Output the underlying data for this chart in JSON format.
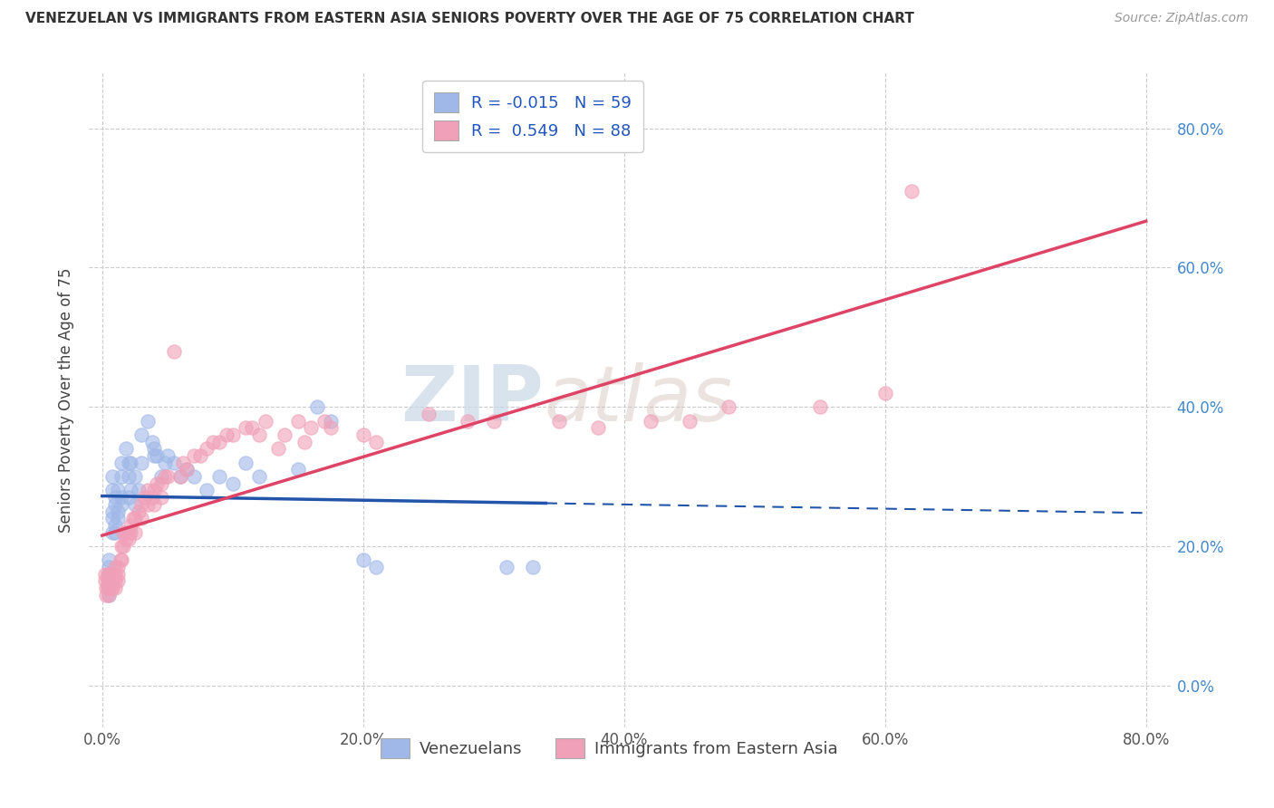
{
  "title": "VENEZUELAN VS IMMIGRANTS FROM EASTERN ASIA SENIORS POVERTY OVER THE AGE OF 75 CORRELATION CHART",
  "source": "Source: ZipAtlas.com",
  "ylabel": "Seniors Poverty Over the Age of 75",
  "xlim": [
    -0.01,
    0.82
  ],
  "ylim": [
    -0.06,
    0.88
  ],
  "ytick_labels": [
    "0.0%",
    "20.0%",
    "40.0%",
    "60.0%",
    "80.0%"
  ],
  "ytick_values": [
    0.0,
    0.2,
    0.4,
    0.6,
    0.8
  ],
  "xtick_labels": [
    "0.0%",
    "20.0%",
    "40.0%",
    "60.0%",
    "80.0%"
  ],
  "xtick_values": [
    0.0,
    0.2,
    0.4,
    0.6,
    0.8
  ],
  "venezuelan_color": "#a0b8e8",
  "eastern_asia_color": "#f0a0b8",
  "venezuelan_line_color": "#2255aa",
  "eastern_asia_line_color": "#dd4466",
  "R_venezuelan": -0.015,
  "N_venezuelan": 59,
  "R_eastern_asia": 0.549,
  "N_eastern_asia": 88,
  "watermark_zip": "ZIP",
  "watermark_atlas": "atlas",
  "venezuelan_scatter": [
    [
      0.005,
      0.16
    ],
    [
      0.005,
      0.15
    ],
    [
      0.005,
      0.14
    ],
    [
      0.005,
      0.13
    ],
    [
      0.005,
      0.17
    ],
    [
      0.005,
      0.18
    ],
    [
      0.005,
      0.16
    ],
    [
      0.005,
      0.15
    ],
    [
      0.008,
      0.25
    ],
    [
      0.008,
      0.24
    ],
    [
      0.008,
      0.22
    ],
    [
      0.008,
      0.3
    ],
    [
      0.008,
      0.28
    ],
    [
      0.01,
      0.26
    ],
    [
      0.01,
      0.27
    ],
    [
      0.01,
      0.23
    ],
    [
      0.01,
      0.22
    ],
    [
      0.012,
      0.28
    ],
    [
      0.012,
      0.25
    ],
    [
      0.012,
      0.24
    ],
    [
      0.015,
      0.27
    ],
    [
      0.015,
      0.26
    ],
    [
      0.015,
      0.32
    ],
    [
      0.015,
      0.3
    ],
    [
      0.018,
      0.34
    ],
    [
      0.02,
      0.32
    ],
    [
      0.02,
      0.3
    ],
    [
      0.02,
      0.27
    ],
    [
      0.022,
      0.32
    ],
    [
      0.022,
      0.28
    ],
    [
      0.025,
      0.3
    ],
    [
      0.025,
      0.26
    ],
    [
      0.028,
      0.28
    ],
    [
      0.03,
      0.36
    ],
    [
      0.03,
      0.32
    ],
    [
      0.035,
      0.38
    ],
    [
      0.038,
      0.35
    ],
    [
      0.04,
      0.34
    ],
    [
      0.04,
      0.33
    ],
    [
      0.042,
      0.33
    ],
    [
      0.045,
      0.3
    ],
    [
      0.048,
      0.32
    ],
    [
      0.05,
      0.33
    ],
    [
      0.055,
      0.32
    ],
    [
      0.06,
      0.3
    ],
    [
      0.065,
      0.31
    ],
    [
      0.07,
      0.3
    ],
    [
      0.08,
      0.28
    ],
    [
      0.09,
      0.3
    ],
    [
      0.1,
      0.29
    ],
    [
      0.11,
      0.32
    ],
    [
      0.12,
      0.3
    ],
    [
      0.15,
      0.31
    ],
    [
      0.165,
      0.4
    ],
    [
      0.175,
      0.38
    ],
    [
      0.2,
      0.18
    ],
    [
      0.21,
      0.17
    ],
    [
      0.31,
      0.17
    ],
    [
      0.33,
      0.17
    ]
  ],
  "eastern_asia_scatter": [
    [
      0.002,
      0.16
    ],
    [
      0.002,
      0.15
    ],
    [
      0.003,
      0.14
    ],
    [
      0.003,
      0.13
    ],
    [
      0.004,
      0.15
    ],
    [
      0.004,
      0.14
    ],
    [
      0.004,
      0.16
    ],
    [
      0.005,
      0.15
    ],
    [
      0.005,
      0.14
    ],
    [
      0.005,
      0.13
    ],
    [
      0.006,
      0.16
    ],
    [
      0.006,
      0.15
    ],
    [
      0.007,
      0.14
    ],
    [
      0.007,
      0.16
    ],
    [
      0.007,
      0.15
    ],
    [
      0.008,
      0.16
    ],
    [
      0.008,
      0.14
    ],
    [
      0.008,
      0.15
    ],
    [
      0.01,
      0.17
    ],
    [
      0.01,
      0.15
    ],
    [
      0.01,
      0.14
    ],
    [
      0.01,
      0.16
    ],
    [
      0.012,
      0.17
    ],
    [
      0.012,
      0.16
    ],
    [
      0.012,
      0.15
    ],
    [
      0.014,
      0.18
    ],
    [
      0.015,
      0.2
    ],
    [
      0.015,
      0.18
    ],
    [
      0.016,
      0.22
    ],
    [
      0.016,
      0.2
    ],
    [
      0.018,
      0.21
    ],
    [
      0.018,
      0.22
    ],
    [
      0.02,
      0.22
    ],
    [
      0.02,
      0.21
    ],
    [
      0.022,
      0.23
    ],
    [
      0.022,
      0.22
    ],
    [
      0.024,
      0.24
    ],
    [
      0.025,
      0.24
    ],
    [
      0.025,
      0.22
    ],
    [
      0.028,
      0.25
    ],
    [
      0.03,
      0.26
    ],
    [
      0.03,
      0.24
    ],
    [
      0.032,
      0.27
    ],
    [
      0.035,
      0.28
    ],
    [
      0.035,
      0.26
    ],
    [
      0.038,
      0.27
    ],
    [
      0.04,
      0.28
    ],
    [
      0.04,
      0.26
    ],
    [
      0.042,
      0.29
    ],
    [
      0.045,
      0.29
    ],
    [
      0.045,
      0.27
    ],
    [
      0.048,
      0.3
    ],
    [
      0.05,
      0.3
    ],
    [
      0.055,
      0.48
    ],
    [
      0.06,
      0.3
    ],
    [
      0.062,
      0.32
    ],
    [
      0.065,
      0.31
    ],
    [
      0.07,
      0.33
    ],
    [
      0.075,
      0.33
    ],
    [
      0.08,
      0.34
    ],
    [
      0.085,
      0.35
    ],
    [
      0.09,
      0.35
    ],
    [
      0.095,
      0.36
    ],
    [
      0.1,
      0.36
    ],
    [
      0.11,
      0.37
    ],
    [
      0.115,
      0.37
    ],
    [
      0.12,
      0.36
    ],
    [
      0.125,
      0.38
    ],
    [
      0.135,
      0.34
    ],
    [
      0.14,
      0.36
    ],
    [
      0.15,
      0.38
    ],
    [
      0.155,
      0.35
    ],
    [
      0.16,
      0.37
    ],
    [
      0.17,
      0.38
    ],
    [
      0.175,
      0.37
    ],
    [
      0.2,
      0.36
    ],
    [
      0.21,
      0.35
    ],
    [
      0.25,
      0.39
    ],
    [
      0.28,
      0.38
    ],
    [
      0.3,
      0.38
    ],
    [
      0.35,
      0.38
    ],
    [
      0.38,
      0.37
    ],
    [
      0.42,
      0.38
    ],
    [
      0.45,
      0.38
    ],
    [
      0.48,
      0.4
    ],
    [
      0.55,
      0.4
    ],
    [
      0.6,
      0.42
    ],
    [
      0.62,
      0.71
    ]
  ],
  "ven_line_x_solid_end": 0.34,
  "ven_line_x_dashed_end": 0.8,
  "ea_line_x_end": 0.8
}
